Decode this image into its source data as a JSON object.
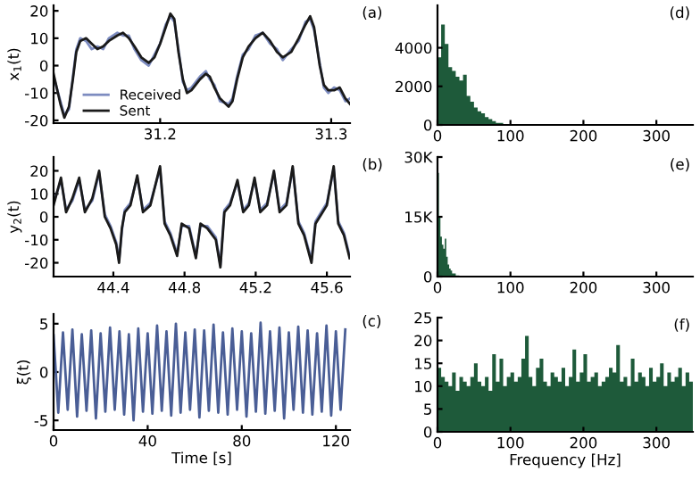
{
  "chart_data": [
    {
      "type": "line",
      "ylabel": "x$_{1}$(t)",
      "annotations": [
        "(a)"
      ],
      "xlim": [
        31.1377,
        31.311
      ],
      "ylim": [
        -21,
        22
      ],
      "xticks": [
        31.2,
        31.3
      ],
      "yticks": [
        -20,
        -10,
        0,
        10,
        20
      ],
      "grid": false,
      "legend": "bottom left",
      "x": [
        31.1377,
        31.1417,
        31.144,
        31.1467,
        31.149,
        31.151,
        31.1533,
        31.1567,
        31.16,
        31.1633,
        31.1667,
        31.17,
        31.175,
        31.1783,
        31.1817,
        31.185,
        31.189,
        31.1933,
        31.1967,
        31.2,
        31.2033,
        31.206,
        31.2083,
        31.2107,
        31.2133,
        31.2157,
        31.2183,
        31.2233,
        31.2267,
        31.229,
        31.2317,
        31.235,
        31.24,
        31.2423,
        31.245,
        31.2483,
        31.2517,
        31.2557,
        31.26,
        31.2643,
        31.2683,
        31.2717,
        31.2767,
        31.281,
        31.285,
        31.2877,
        31.29,
        31.2933,
        31.2957,
        31.2983,
        31.3017,
        31.305,
        31.3083,
        31.311
      ],
      "series": [
        {
          "name": "Received",
          "color": "#7d8cc0",
          "values": [
            -4,
            -13,
            -18,
            -16,
            -4,
            6,
            10,
            9,
            6,
            7,
            6,
            10,
            12,
            11,
            11,
            6,
            2,
            0,
            4,
            8,
            15,
            18,
            16,
            6,
            -6,
            -9,
            -8,
            -4,
            -2,
            -5,
            -7,
            -13,
            -14,
            -12,
            -4,
            4,
            6,
            11,
            12,
            8,
            6,
            2,
            6,
            9,
            16,
            17,
            13,
            1,
            -8,
            -10,
            -8,
            -9,
            -13,
            -12
          ]
        },
        {
          "name": "Sent",
          "color": "#1a1a1a",
          "values": [
            -3,
            -14,
            -19,
            -15,
            -5,
            5,
            9,
            10,
            8,
            6,
            7,
            9,
            11,
            12,
            10,
            7,
            3,
            1,
            3,
            8,
            14,
            19,
            17,
            5,
            -5,
            -10,
            -9,
            -5,
            -3,
            -4,
            -8,
            -12,
            -15,
            -13,
            -5,
            3,
            7,
            10,
            12,
            9,
            5,
            3,
            5,
            10,
            15,
            18,
            14,
            0,
            -7,
            -9,
            -9,
            -8,
            -12,
            -14
          ]
        }
      ]
    },
    {
      "type": "line",
      "ylabel": "y$_{2}$(t)",
      "annotations": [
        "(b)"
      ],
      "xlim": [
        44.064,
        45.73
      ],
      "ylim": [
        -26,
        26
      ],
      "xticks": [
        44.4,
        44.8,
        45.2,
        45.6
      ],
      "yticks": [
        -20,
        -10,
        0,
        10,
        20
      ],
      "grid": false,
      "x": [
        44.064,
        44.1056,
        44.1344,
        44.1696,
        44.208,
        44.24,
        44.2816,
        44.32,
        44.352,
        44.384,
        44.416,
        44.432,
        44.448,
        44.464,
        44.496,
        44.5344,
        44.5664,
        44.608,
        44.6624,
        44.688,
        44.72,
        44.7584,
        44.784,
        44.8256,
        44.864,
        44.8896,
        44.928,
        44.976,
        45.0016,
        45.024,
        45.056,
        45.0976,
        45.1296,
        45.1616,
        45.1936,
        45.2256,
        45.264,
        45.3024,
        45.3344,
        45.3728,
        45.408,
        45.44,
        45.472,
        45.5136,
        45.536,
        45.568,
        45.6,
        45.6384,
        45.664,
        45.696,
        45.728
      ],
      "series": [
        {
          "color": "#7d8cc0",
          "values": [
            6,
            16,
            3,
            7,
            16,
            3,
            7,
            19,
            1,
            -4,
            -11,
            -19,
            -6,
            3,
            6,
            17,
            3,
            6,
            21,
            -2,
            -7,
            -16,
            -4,
            -4,
            -17,
            -4,
            -4,
            -9,
            -21,
            3,
            6,
            15,
            3,
            6,
            16,
            3,
            6,
            19,
            3,
            6,
            21,
            -2,
            -7,
            -19,
            -2,
            2,
            6,
            21,
            -2,
            -7,
            -17
          ]
        },
        {
          "color": "#1a1a1a",
          "values": [
            5,
            17,
            2,
            8,
            17,
            2,
            8,
            20,
            0,
            -5,
            -12,
            -20,
            -5,
            2,
            5,
            18,
            2,
            5,
            22,
            -3,
            -8,
            -17,
            -3,
            -5,
            -18,
            -3,
            -5,
            -10,
            -22,
            2,
            5,
            16,
            2,
            5,
            17,
            2,
            5,
            20,
            2,
            5,
            22,
            -3,
            -8,
            -20,
            -3,
            1,
            5,
            22,
            -3,
            -8,
            -18
          ]
        }
      ]
    },
    {
      "type": "line",
      "ylabel": "ξ(t)",
      "xlabel": "Time [s]",
      "annotations": [
        "(c)"
      ],
      "xlim": [
        0,
        126
      ],
      "ylim": [
        -6,
        6
      ],
      "xticks": [
        0,
        40,
        80,
        120
      ],
      "yticks": [
        -5,
        0,
        5
      ],
      "grid": false,
      "x": [
        0,
        2,
        4,
        6,
        8,
        10,
        12,
        14,
        16,
        18,
        20,
        22,
        24,
        26,
        28,
        30,
        32,
        34,
        36,
        38,
        40,
        42,
        44,
        46,
        48,
        50,
        52,
        54,
        56,
        58,
        60,
        62,
        64,
        66,
        68,
        70,
        72,
        74,
        76,
        78,
        80,
        82,
        84,
        86,
        88,
        90,
        92,
        94,
        96,
        98,
        100,
        102,
        104,
        106,
        108,
        110,
        112,
        114,
        116,
        118,
        120,
        122,
        124
      ],
      "series": [
        {
          "color": "#4a5e96",
          "values": [
            3.8,
            -4.2,
            4.1,
            -3.9,
            4.4,
            -4.6,
            3.9,
            -4.0,
            4.3,
            -4.8,
            4.0,
            -4.1,
            4.6,
            -3.9,
            4.2,
            -4.4,
            3.9,
            -5.0,
            4.5,
            -4.1,
            4.0,
            -4.3,
            4.8,
            -4.0,
            4.2,
            -4.5,
            5.0,
            -4.2,
            4.1,
            -3.9,
            4.4,
            -4.7,
            4.3,
            -4.0,
            4.9,
            -4.2,
            4.1,
            -4.4,
            4.5,
            -3.9,
            4.2,
            -4.6,
            4.0,
            -4.1,
            5.1,
            -4.3,
            4.2,
            -4.0,
            4.6,
            -4.8,
            4.1,
            -3.9,
            4.7,
            -4.2,
            4.3,
            -4.4,
            4.0,
            -4.1,
            4.8,
            -4.5,
            4.2,
            -3.9,
            4.4
          ]
        }
      ]
    },
    {
      "type": "histogram",
      "annotations": [
        "(d)"
      ],
      "xlim": [
        0,
        350
      ],
      "ylim": [
        0,
        6200
      ],
      "xticks": [
        0,
        100,
        200,
        300
      ],
      "yticks": [
        0,
        2000,
        4000
      ],
      "grid": false,
      "color": "#1e5a3a",
      "bins": [
        0,
        5,
        10,
        15,
        20,
        25,
        30,
        35,
        40,
        45,
        50,
        55,
        60,
        65,
        70,
        75,
        80,
        85,
        90,
        95,
        100,
        350
      ],
      "values": [
        3500,
        5200,
        4200,
        3000,
        2800,
        2500,
        2300,
        2600,
        1500,
        1200,
        900,
        700,
        600,
        400,
        300,
        200,
        100,
        100,
        0,
        0,
        0
      ]
    },
    {
      "type": "histogram",
      "annotations": [
        "(e)"
      ],
      "xlim": [
        0,
        350
      ],
      "ylim": [
        0,
        30000
      ],
      "xticks": [
        0,
        100,
        200,
        300
      ],
      "yticks": [
        0,
        {
          "value": 15000,
          "label": "15K"
        },
        {
          "value": 30000,
          "label": "30K"
        }
      ],
      "grid": false,
      "color": "#1e5a3a",
      "bins": [
        0,
        2,
        4,
        6,
        8,
        10,
        12,
        14,
        16,
        18,
        20,
        25,
        30,
        350
      ],
      "values": [
        26000,
        15000,
        10000,
        8000,
        7000,
        9500,
        5000,
        3000,
        2000,
        1500,
        800,
        300,
        0
      ]
    },
    {
      "type": "histogram",
      "xlabel": "Frequency [Hz]",
      "annotations": [
        "(f)"
      ],
      "xlim": [
        0,
        350
      ],
      "ylim": [
        0,
        25
      ],
      "xticks": [
        0,
        100,
        200,
        300
      ],
      "yticks": [
        0,
        5,
        10,
        15,
        20,
        25
      ],
      "grid": false,
      "color": "#1e5a3a",
      "bins": [
        0,
        5,
        10,
        15,
        20,
        25,
        30,
        35,
        40,
        45,
        50,
        55,
        60,
        65,
        70,
        75,
        80,
        85,
        90,
        95,
        100,
        105,
        110,
        115,
        120,
        125,
        130,
        135,
        140,
        145,
        150,
        155,
        160,
        165,
        170,
        175,
        180,
        185,
        190,
        195,
        200,
        205,
        210,
        215,
        220,
        225,
        230,
        235,
        240,
        245,
        250,
        255,
        260,
        265,
        270,
        275,
        280,
        285,
        290,
        295,
        300,
        305,
        310,
        315,
        320,
        325,
        330,
        335,
        340,
        345,
        350
      ],
      "values": [
        14,
        12,
        11,
        10,
        13,
        9,
        12,
        11,
        10,
        12,
        15,
        11,
        10,
        12,
        9,
        17,
        11,
        16,
        10,
        12,
        13,
        11,
        12,
        16,
        21,
        12,
        10,
        14,
        16,
        11,
        10,
        13,
        12,
        11,
        14,
        10,
        12,
        18,
        11,
        13,
        17,
        11,
        12,
        13,
        10,
        11,
        12,
        14,
        13,
        19,
        11,
        12,
        10,
        16,
        11,
        13,
        12,
        10,
        14,
        11,
        12,
        15,
        10,
        13,
        11,
        12,
        14,
        10,
        13,
        11
      ]
    }
  ]
}
